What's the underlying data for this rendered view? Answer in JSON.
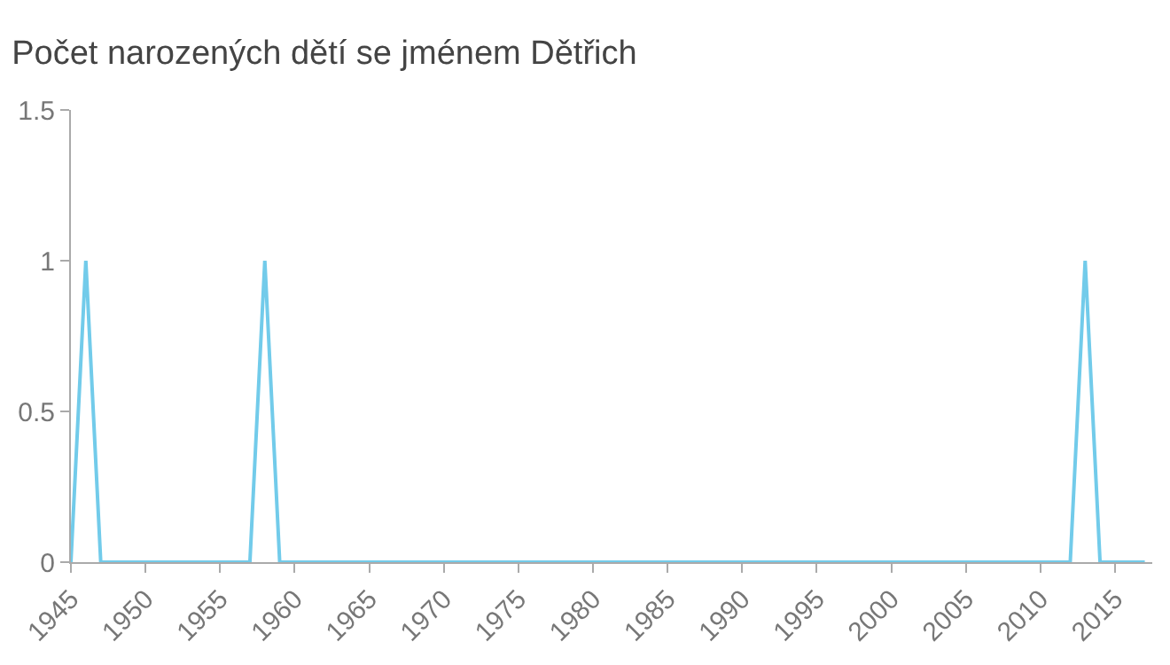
{
  "chart_data": {
    "type": "line",
    "title": "Počet narozených dětí se jménem Dětřich",
    "x": [
      1945,
      1946,
      1947,
      1957,
      1958,
      1959,
      2012,
      2013,
      2014,
      2017
    ],
    "series": [
      {
        "color": "#72cbea",
        "values": [
          0,
          1,
          0,
          0,
          1,
          0,
          0,
          1,
          0,
          0
        ]
      }
    ],
    "xlim": [
      1945,
      2017.5
    ],
    "xticks": [
      1945,
      1950,
      1955,
      1960,
      1965,
      1970,
      1975,
      1980,
      1985,
      1990,
      1995,
      2000,
      2005,
      2010,
      2015
    ],
    "ylim": [
      0,
      1.5
    ],
    "yticks": [
      0,
      0.5,
      1,
      1.5
    ],
    "marker": "none",
    "line_style": "solid"
  }
}
